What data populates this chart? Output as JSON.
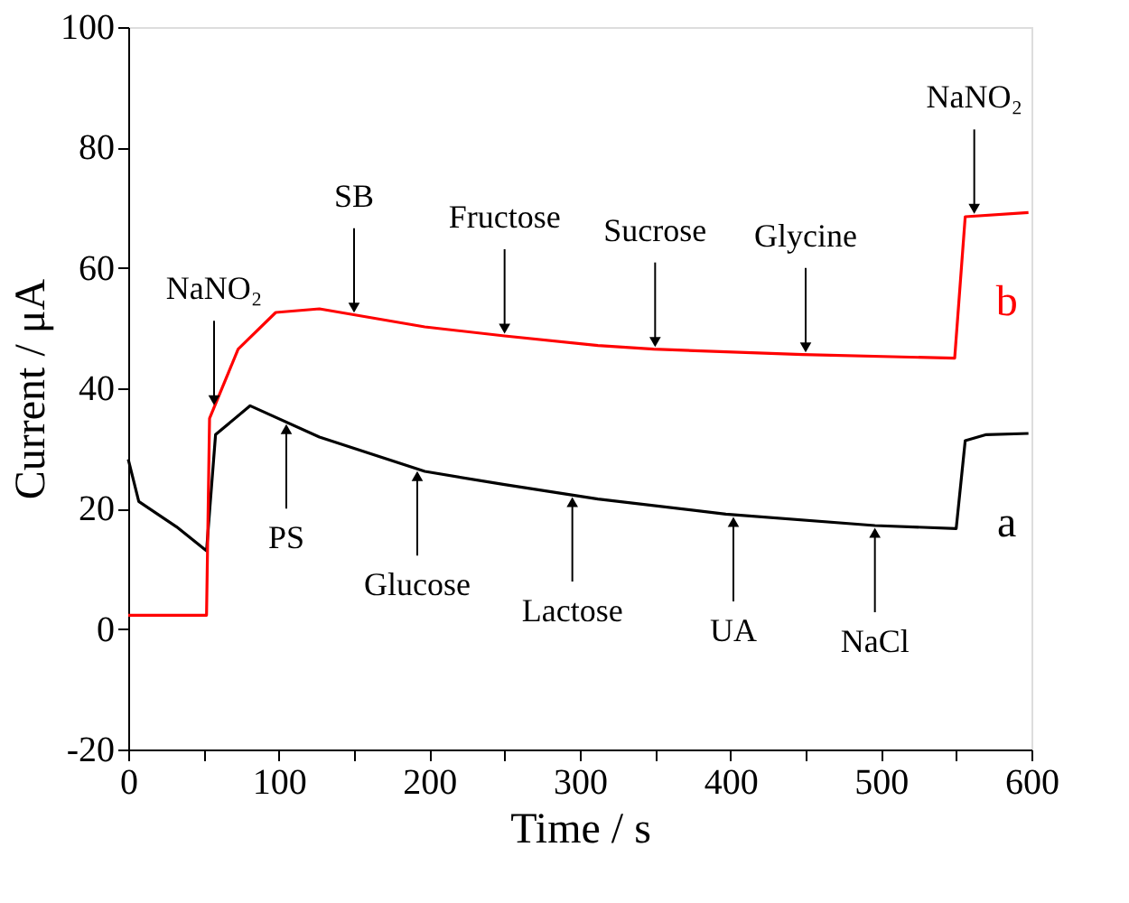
{
  "chart_data": {
    "type": "line",
    "xlabel": "Time / s",
    "ylabel": "Current / μA",
    "series": [
      {
        "name": "a",
        "color": "#000000",
        "x": [
          0,
          7,
          32,
          52,
          58,
          81,
          127,
          197,
          250,
          312,
          397,
          496,
          550,
          556,
          570,
          598
        ],
        "values": [
          28.2,
          21.2,
          17,
          13,
          32.3,
          37.1,
          31.9,
          26.2,
          24,
          21.6,
          19.1,
          17.2,
          16.7,
          31.3,
          32.3,
          32.5
        ]
      },
      {
        "name": "b",
        "color": "#ff0000",
        "x": [
          0,
          52,
          54,
          73,
          98,
          127,
          197,
          250,
          312,
          349,
          448,
          549,
          556,
          598
        ],
        "values": [
          2.3,
          2.3,
          35,
          46.5,
          52.6,
          53.2,
          50.2,
          48.7,
          47.1,
          46.5,
          45.6,
          45.0,
          68.5,
          69.2
        ]
      }
    ],
    "xlim": [
      0,
      600
    ],
    "ylim": [
      -20,
      100
    ],
    "xticks": [
      0,
      {
        "value": 50,
        "label": null
      },
      100,
      {
        "value": 150,
        "label": null
      },
      200,
      {
        "value": 250,
        "label": null
      },
      300,
      {
        "value": 350,
        "label": null
      },
      400,
      {
        "value": 450,
        "label": null
      },
      500,
      {
        "value": 550,
        "label": null
      },
      600
    ],
    "yticks": [
      -20,
      0,
      20,
      40,
      60,
      80,
      100
    ],
    "grid": false,
    "legend": false,
    "marker": "none",
    "line_style": "solid",
    "annotations": [
      {
        "text": "NaNO₂",
        "x": 57,
        "y": 36.8
      },
      {
        "text": "SB",
        "x": 150,
        "y": 52.2
      },
      {
        "text": "Fructose",
        "x": 250,
        "y": 48.7
      },
      {
        "text": "Sucrose",
        "x": 350,
        "y": 46.5
      },
      {
        "text": "Glycine",
        "x": 450,
        "y": 45.6
      },
      {
        "text": "NaNO₂",
        "x": 562,
        "y": 68.6
      },
      {
        "text": "PS",
        "x": 105,
        "y": 34.4
      },
      {
        "text": "Glucose",
        "x": 192,
        "y": 26.6
      },
      {
        "text": "Lactose",
        "x": 295,
        "y": 22.3
      },
      {
        "text": "UA",
        "x": 402,
        "y": 19.0
      },
      {
        "text": "NaCl",
        "x": 496,
        "y": 17.2
      }
    ]
  }
}
